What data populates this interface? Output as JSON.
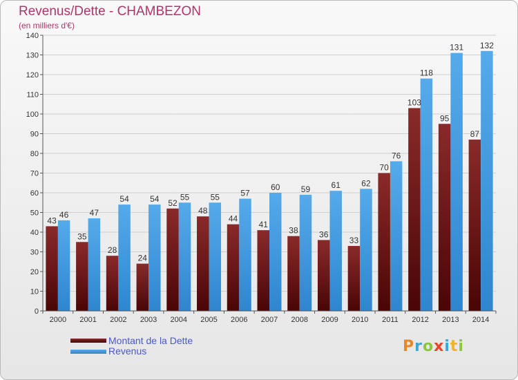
{
  "title": "Revenus/Dette - CHAMBEZON",
  "subtitle": "(en milliers d'€)",
  "legend": {
    "debt_label": "Montant de la Dette",
    "revenue_label": "Revenus"
  },
  "logo": {
    "text": "Proxiti",
    "letters": [
      "P",
      "r",
      "o",
      "x",
      "i",
      "t",
      "i"
    ]
  },
  "colors": {
    "debt": "#7a1f1f",
    "debt_dark": "#4a0a0a",
    "revenue": "#4fa3e6",
    "revenue_dark": "#2a7bc6",
    "title": "#b0336a",
    "legend_text": "#4a57c8"
  },
  "chart_data": {
    "type": "bar",
    "title": "Revenus/Dette - CHAMBEZON",
    "subtitle": "(en milliers d'€)",
    "categories": [
      "2000",
      "2001",
      "2002",
      "2003",
      "2004",
      "2005",
      "2006",
      "2007",
      "2008",
      "2009",
      "2010",
      "2011",
      "2012",
      "2013",
      "2014"
    ],
    "series": [
      {
        "name": "Montant de la Dette",
        "values": [
          43,
          35,
          28,
          24,
          52,
          48,
          44,
          41,
          38,
          36,
          33,
          70,
          103,
          95,
          87
        ]
      },
      {
        "name": "Revenus",
        "values": [
          46,
          47,
          54,
          54,
          55,
          55,
          57,
          60,
          59,
          61,
          62,
          76,
          118,
          131,
          132
        ]
      }
    ],
    "ylim": [
      0,
      140
    ],
    "yticks": [
      0,
      10,
      20,
      30,
      40,
      50,
      60,
      70,
      80,
      90,
      100,
      110,
      120,
      130,
      140
    ],
    "grid": true,
    "legend_position": "bottom-left"
  }
}
